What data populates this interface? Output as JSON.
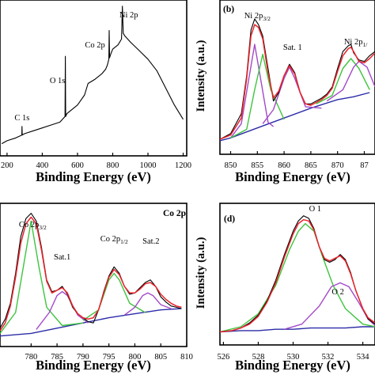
{
  "colors": {
    "raw": "#000000",
    "envelope": "#e8232a",
    "component_green": "#3ec43e",
    "component_violet": "#a349c8",
    "background": "#2c2ca8"
  },
  "chart_data": [
    {
      "id": "a",
      "type": "line",
      "panel_label": "",
      "xlabel": "Binding Energy (eV)",
      "ylabel": "",
      "x_ticks": [
        "200",
        "400",
        "600",
        "800",
        "1000",
        "1200"
      ],
      "x_visible_range": [
        160,
        1220
      ],
      "annotations": [
        {
          "text": "C 1s",
          "x": 285
        },
        {
          "text": "O 1s",
          "x": 531
        },
        {
          "text": "Co 2p",
          "x": 780
        },
        {
          "text": "Ni 2p",
          "x": 855
        }
      ],
      "series": [
        {
          "role": "raw",
          "x": [
            170,
            200,
            250,
            284,
            285,
            286,
            300,
            350,
            400,
            450,
            500,
            529,
            531,
            533,
            540,
            560,
            600,
            640,
            660,
            700,
            740,
            760,
            770,
            778,
            780,
            782,
            790,
            800,
            830,
            850,
            855,
            860,
            870,
            900,
            950,
            1000,
            1050,
            1100,
            1150,
            1200
          ],
          "y": [
            3,
            5,
            7,
            9,
            15,
            9,
            10,
            12,
            14,
            16,
            18,
            22,
            64,
            22,
            24,
            26,
            30,
            37,
            45,
            48,
            52,
            55,
            58,
            62,
            82,
            63,
            66,
            69,
            72,
            76,
            99,
            80,
            78,
            74,
            68,
            62,
            54,
            42,
            30,
            20
          ]
        }
      ]
    },
    {
      "id": "b",
      "type": "line",
      "panel_label": "(b)",
      "xlabel": "Binding Energy (eV)",
      "ylabel": "Intensity (a.u.)",
      "x_ticks": [
        "850",
        "855",
        "860",
        "865",
        "870",
        "87"
      ],
      "x_visible_range": [
        848,
        877
      ],
      "annotations": [
        {
          "text": "Ni 2p",
          "sub": "3/2",
          "x": 855
        },
        {
          "text": "Sat. 1",
          "x": 861
        },
        {
          "text": "Ni 2p",
          "sub": "1/",
          "x": 872.5
        }
      ],
      "series": [
        {
          "role": "background",
          "x": [
            848,
            850,
            855,
            860,
            865,
            870,
            873,
            876
          ],
          "y": [
            4,
            6,
            13,
            20,
            27,
            33,
            35,
            38
          ]
        },
        {
          "role": "component_violet",
          "x": [
            850,
            852,
            853.5,
            854.5,
            855.5,
            857,
            858
          ],
          "y": [
            6,
            16,
            50,
            72,
            50,
            17,
            14
          ]
        },
        {
          "role": "component_green",
          "x": [
            850,
            853,
            854.5,
            856,
            857.5,
            860
          ],
          "y": [
            6,
            12,
            40,
            65,
            40,
            19
          ]
        },
        {
          "role": "component_violet",
          "x": [
            856,
            858,
            860,
            861,
            862,
            864,
            867
          ],
          "y": [
            16,
            26,
            48,
            56,
            48,
            28,
            27
          ]
        },
        {
          "role": "component_green",
          "x": [
            866,
            869,
            871,
            872.5,
            874,
            876
          ],
          "y": [
            30,
            36,
            55,
            62,
            55,
            40
          ]
        },
        {
          "role": "component_violet",
          "x": [
            868,
            871,
            873,
            874,
            875.5,
            877
          ],
          "y": [
            32,
            40,
            56,
            60,
            56,
            42
          ]
        },
        {
          "role": "raw",
          "x": [
            848,
            850,
            852,
            853,
            853.8,
            854.5,
            855.2,
            856,
            857,
            858,
            859,
            860,
            861,
            862,
            863,
            864,
            865,
            866,
            867,
            868,
            869,
            870,
            871,
            872,
            872.5,
            873,
            874,
            875,
            876,
            877
          ],
          "y": [
            5,
            9,
            23,
            50,
            82,
            90,
            86,
            78,
            55,
            32,
            38,
            50,
            58,
            52,
            38,
            30,
            30,
            32,
            34,
            37,
            42,
            55,
            67,
            71,
            72,
            66,
            61,
            60,
            64,
            67
          ]
        },
        {
          "role": "envelope",
          "x": [
            848,
            850,
            852,
            853,
            853.8,
            854.5,
            855.2,
            856,
            857,
            858,
            859,
            860,
            861,
            862,
            863,
            864,
            865,
            866,
            867,
            868,
            869,
            870,
            871,
            872,
            872.5,
            873,
            874,
            875,
            876,
            877
          ],
          "y": [
            5,
            8,
            20,
            48,
            78,
            86,
            84,
            76,
            52,
            34,
            39,
            50,
            57,
            51,
            38,
            30,
            29,
            31,
            33,
            36,
            41,
            53,
            64,
            69,
            70,
            67,
            60,
            59,
            62,
            66
          ]
        }
      ]
    },
    {
      "id": "c",
      "type": "line",
      "panel_label": "Co 2p",
      "xlabel": "Binding Energy (eV)",
      "ylabel": "",
      "x_ticks": [
        "780",
        "785",
        "790",
        "795",
        "800",
        "805",
        "810"
      ],
      "x_visible_range": [
        774,
        810
      ],
      "annotations": [
        {
          "text": "Co 2p",
          "sub": "3/2",
          "x": 780
        },
        {
          "text": "Sat.1",
          "x": 786
        },
        {
          "text": "Co 2p",
          "sub": "1/2",
          "x": 796
        },
        {
          "text": "Sat.2",
          "x": 802.5
        }
      ],
      "series": [
        {
          "role": "background",
          "x": [
            774,
            780,
            785,
            790,
            795,
            800,
            805,
            809
          ],
          "y": [
            2,
            4,
            8,
            12,
            16,
            19,
            22,
            23
          ]
        },
        {
          "role": "component_green",
          "x": [
            774,
            777,
            778.5,
            780,
            781.5,
            783,
            786,
            790
          ],
          "y": [
            4,
            20,
            55,
            90,
            55,
            24,
            10,
            12
          ]
        },
        {
          "role": "component_violet",
          "x": [
            781,
            783.5,
            785,
            786,
            787,
            789,
            791
          ],
          "y": [
            7,
            20,
            33,
            36,
            33,
            18,
            12
          ]
        },
        {
          "role": "component_green",
          "x": [
            790,
            793,
            795,
            796,
            797,
            799,
            802
          ],
          "y": [
            14,
            22,
            45,
            50,
            45,
            27,
            20
          ]
        },
        {
          "role": "component_violet",
          "x": [
            798,
            800,
            801.5,
            802.5,
            803.5,
            805,
            807
          ],
          "y": [
            18,
            24,
            33,
            35,
            33,
            26,
            23
          ]
        },
        {
          "role": "raw",
          "x": [
            774,
            775,
            776,
            777,
            778,
            779,
            780,
            781,
            782,
            783,
            784,
            785,
            786,
            787,
            788,
            789,
            790,
            791,
            792,
            793,
            794,
            795,
            796,
            797,
            798,
            799,
            800,
            801,
            802,
            803,
            804,
            805,
            806,
            807,
            808,
            809
          ],
          "y": [
            8,
            15,
            27,
            50,
            78,
            92,
            96,
            90,
            70,
            45,
            36,
            37,
            40,
            34,
            24,
            19,
            16,
            13,
            12,
            22,
            36,
            48,
            55,
            50,
            40,
            34,
            35,
            39,
            43,
            45,
            40,
            32,
            28,
            25,
            24,
            23
          ]
        },
        {
          "role": "envelope",
          "x": [
            774,
            775,
            776,
            777,
            778,
            779,
            780,
            781,
            782,
            783,
            784,
            785,
            786,
            787,
            788,
            789,
            790,
            791,
            792,
            793,
            794,
            795,
            796,
            797,
            798,
            799,
            800,
            801,
            802,
            803,
            804,
            805,
            806,
            807,
            808,
            809
          ],
          "y": [
            6,
            12,
            25,
            47,
            73,
            88,
            93,
            88,
            68,
            44,
            35,
            37,
            39,
            35,
            25,
            19,
            16,
            15,
            16,
            22,
            35,
            47,
            53,
            49,
            40,
            35,
            35,
            38,
            42,
            43,
            40,
            34,
            30,
            27,
            25,
            24
          ]
        }
      ]
    },
    {
      "id": "d",
      "type": "line",
      "panel_label": "(d)",
      "xlabel": "Binding Energy (eV)",
      "ylabel": "Intensity (a.u.)",
      "x_ticks": [
        "526",
        "528",
        "530",
        "532",
        "534"
      ],
      "x_visible_range": [
        525.8,
        534.7
      ],
      "annotations": [
        {
          "text": "O 1",
          "x": 530.9
        },
        {
          "text": "O 2",
          "x": 532.3
        }
      ],
      "series": [
        {
          "role": "background",
          "x": [
            525.8,
            527,
            528,
            529,
            530,
            531,
            532,
            533,
            534,
            534.7
          ],
          "y": [
            4,
            5,
            5,
            6,
            6,
            7,
            7,
            7,
            8,
            8
          ]
        },
        {
          "role": "component_green",
          "x": [
            525.8,
            527,
            528,
            529,
            529.8,
            530.3,
            530.7,
            531.2,
            531.7,
            532.3,
            533,
            534,
            534.7
          ],
          "y": [
            4,
            8,
            18,
            40,
            68,
            82,
            88,
            82,
            62,
            40,
            22,
            10,
            8
          ]
        },
        {
          "role": "component_violet",
          "x": [
            529.5,
            530.5,
            531.5,
            532.2,
            532.7,
            533.2,
            533.8,
            534.3,
            534.7
          ],
          "y": [
            6,
            10,
            24,
            39,
            42,
            39,
            26,
            14,
            9
          ]
        },
        {
          "role": "raw",
          "x": [
            525.8,
            526.5,
            527,
            527.5,
            528,
            528.5,
            529,
            529.5,
            530,
            530.3,
            530.6,
            530.9,
            531.2,
            531.5,
            531.8,
            532.1,
            532.4,
            532.7,
            533,
            533.3,
            533.6,
            534,
            534.3,
            534.7
          ],
          "y": [
            4,
            5,
            7,
            11,
            17,
            28,
            44,
            64,
            82,
            90,
            94,
            92,
            84,
            70,
            60,
            58,
            60,
            64,
            60,
            50,
            36,
            22,
            14,
            10
          ]
        },
        {
          "role": "envelope",
          "x": [
            525.8,
            526.5,
            527,
            527.5,
            528,
            528.5,
            529,
            529.5,
            530,
            530.3,
            530.6,
            530.9,
            531.2,
            531.5,
            531.8,
            532.1,
            532.4,
            532.7,
            533,
            533.3,
            533.6,
            534,
            534.3,
            534.7
          ],
          "y": [
            4,
            5,
            7,
            10,
            16,
            27,
            42,
            62,
            80,
            88,
            91,
            90,
            83,
            70,
            61,
            59,
            61,
            63,
            59,
            49,
            36,
            22,
            15,
            11
          ]
        }
      ]
    }
  ]
}
